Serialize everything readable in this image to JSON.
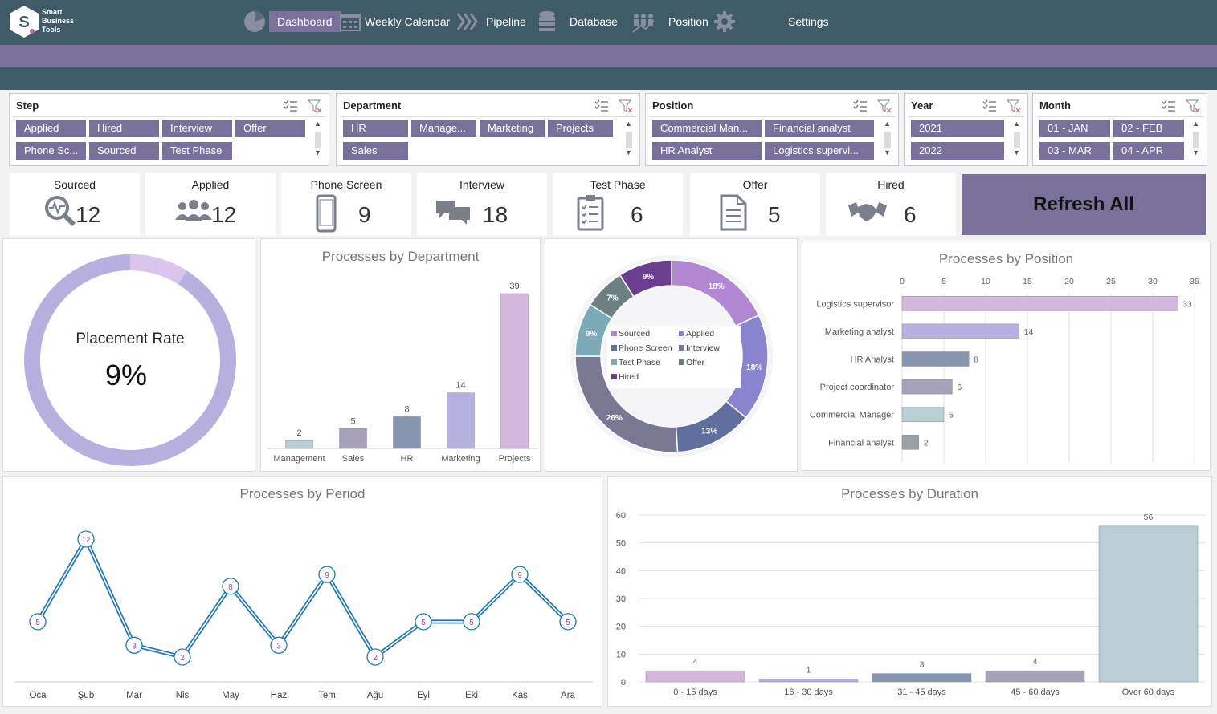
{
  "brand": {
    "line1": "Smart",
    "line2": "Business",
    "line3": "Tools"
  },
  "nav": [
    {
      "label": "Dashboard",
      "icon": "pie-chart-icon",
      "active": true
    },
    {
      "label": "Weekly Calendar",
      "icon": "calendar-icon"
    },
    {
      "label": "Pipeline",
      "icon": "chevrons-icon"
    },
    {
      "label": "Database",
      "icon": "database-icon"
    },
    {
      "label": "Position",
      "icon": "team-growth-icon"
    },
    {
      "label": "Settings",
      "icon": "gear-icon"
    }
  ],
  "slicers": {
    "step": {
      "title": "Step",
      "items": [
        "Applied",
        "Hired",
        "Interview",
        "Offer",
        "Phone Sc...",
        "Sourced",
        "Test Phase"
      ]
    },
    "department": {
      "title": "Department",
      "items": [
        "HR",
        "Manage...",
        "Marketing",
        "Projects",
        "Sales"
      ]
    },
    "position": {
      "title": "Position",
      "items": [
        "Commercial Man...",
        "Financial analyst",
        "HR Analyst",
        "Logistics supervi..."
      ]
    },
    "year": {
      "title": "Year",
      "items": [
        "2021",
        "2022"
      ]
    },
    "month": {
      "title": "Month",
      "items": [
        "01 - JAN",
        "02 - FEB",
        "03 - MAR",
        "04 - APR"
      ]
    }
  },
  "kpis": [
    {
      "label": "Sourced",
      "value": "12",
      "icon": "search-pulse-icon"
    },
    {
      "label": "Applied",
      "value": "12",
      "icon": "users-icon"
    },
    {
      "label": "Phone Screen",
      "value": "9",
      "icon": "phone-icon"
    },
    {
      "label": "Interview",
      "value": "18",
      "icon": "chat-icon"
    },
    {
      "label": "Test Phase",
      "value": "6",
      "icon": "checklist-icon"
    },
    {
      "label": "Offer",
      "value": "5",
      "icon": "document-icon"
    },
    {
      "label": "Hired",
      "value": "6",
      "icon": "handshake-icon"
    }
  ],
  "refresh_label": "Refresh All",
  "placement": {
    "label": "Placement Rate",
    "value": "9%",
    "fraction": 0.09
  },
  "colors": {
    "header": "#3f5b66",
    "accent": "#7a719b",
    "line": "#1f78b4"
  },
  "chart_data": [
    {
      "type": "bar",
      "title": "Processes by Department",
      "categories": [
        "Management",
        "Sales",
        "HR",
        "Marketing",
        "Projects"
      ],
      "values": [
        2,
        5,
        8,
        14,
        39
      ],
      "colors": [
        "#b9cfd3",
        "#a7a2b8",
        "#8895b0",
        "#b6b1de",
        "#d5b6dd"
      ]
    },
    {
      "type": "pie",
      "title": "",
      "labels": [
        "Sourced",
        "Applied",
        "Phone Screen",
        "Interview",
        "Test Phase",
        "Offer",
        "Hired"
      ],
      "values": [
        18,
        18,
        13,
        26,
        9,
        7,
        9
      ],
      "display": [
        "18%",
        "18%",
        "13%",
        "26%",
        "9%",
        "7%",
        "9%"
      ],
      "colors": [
        "#b287d1",
        "#8a84cc",
        "#5f6f9e",
        "#797792",
        "#7daab8",
        "#6d7f80",
        "#6b3d8f"
      ]
    },
    {
      "type": "bar",
      "orientation": "horizontal",
      "title": "Processes by Position",
      "categories": [
        "Logistics supervisor",
        "Marketing analyst",
        "HR Analyst",
        "Project coordinator",
        "Commercial Manager",
        "Financial analyst"
      ],
      "values": [
        33,
        14,
        8,
        6,
        5,
        2
      ],
      "ticks": [
        0,
        5,
        10,
        15,
        20,
        25,
        30,
        35
      ],
      "xlim": [
        0,
        35
      ],
      "colors": [
        "#d5b6dd",
        "#b6b1de",
        "#8895b0",
        "#a7a2b8",
        "#b9cfd3",
        "#9aa0a6"
      ]
    },
    {
      "type": "line",
      "title": "Processes by Period",
      "categories": [
        "Oca",
        "Şub",
        "Mar",
        "Nis",
        "May",
        "Haz",
        "Tem",
        "Ağu",
        "Eyl",
        "Eki",
        "Kas",
        "Ara"
      ],
      "values": [
        5,
        12,
        3,
        2,
        8,
        3,
        9,
        2,
        5,
        5,
        9,
        5
      ]
    },
    {
      "type": "bar",
      "title": "Processes by Duration",
      "categories": [
        "0 - 15 days",
        "16 - 30 days",
        "31 - 45 days",
        "45 - 60 days",
        "Over 60 days"
      ],
      "values": [
        4,
        1,
        3,
        4,
        56
      ],
      "ticks": [
        0,
        10,
        20,
        30,
        40,
        50,
        60
      ],
      "ylim": [
        0,
        60
      ],
      "colors": [
        "#d5b6dd",
        "#b6b1de",
        "#8895b0",
        "#a7a2b8",
        "#b9cfd3"
      ]
    }
  ]
}
